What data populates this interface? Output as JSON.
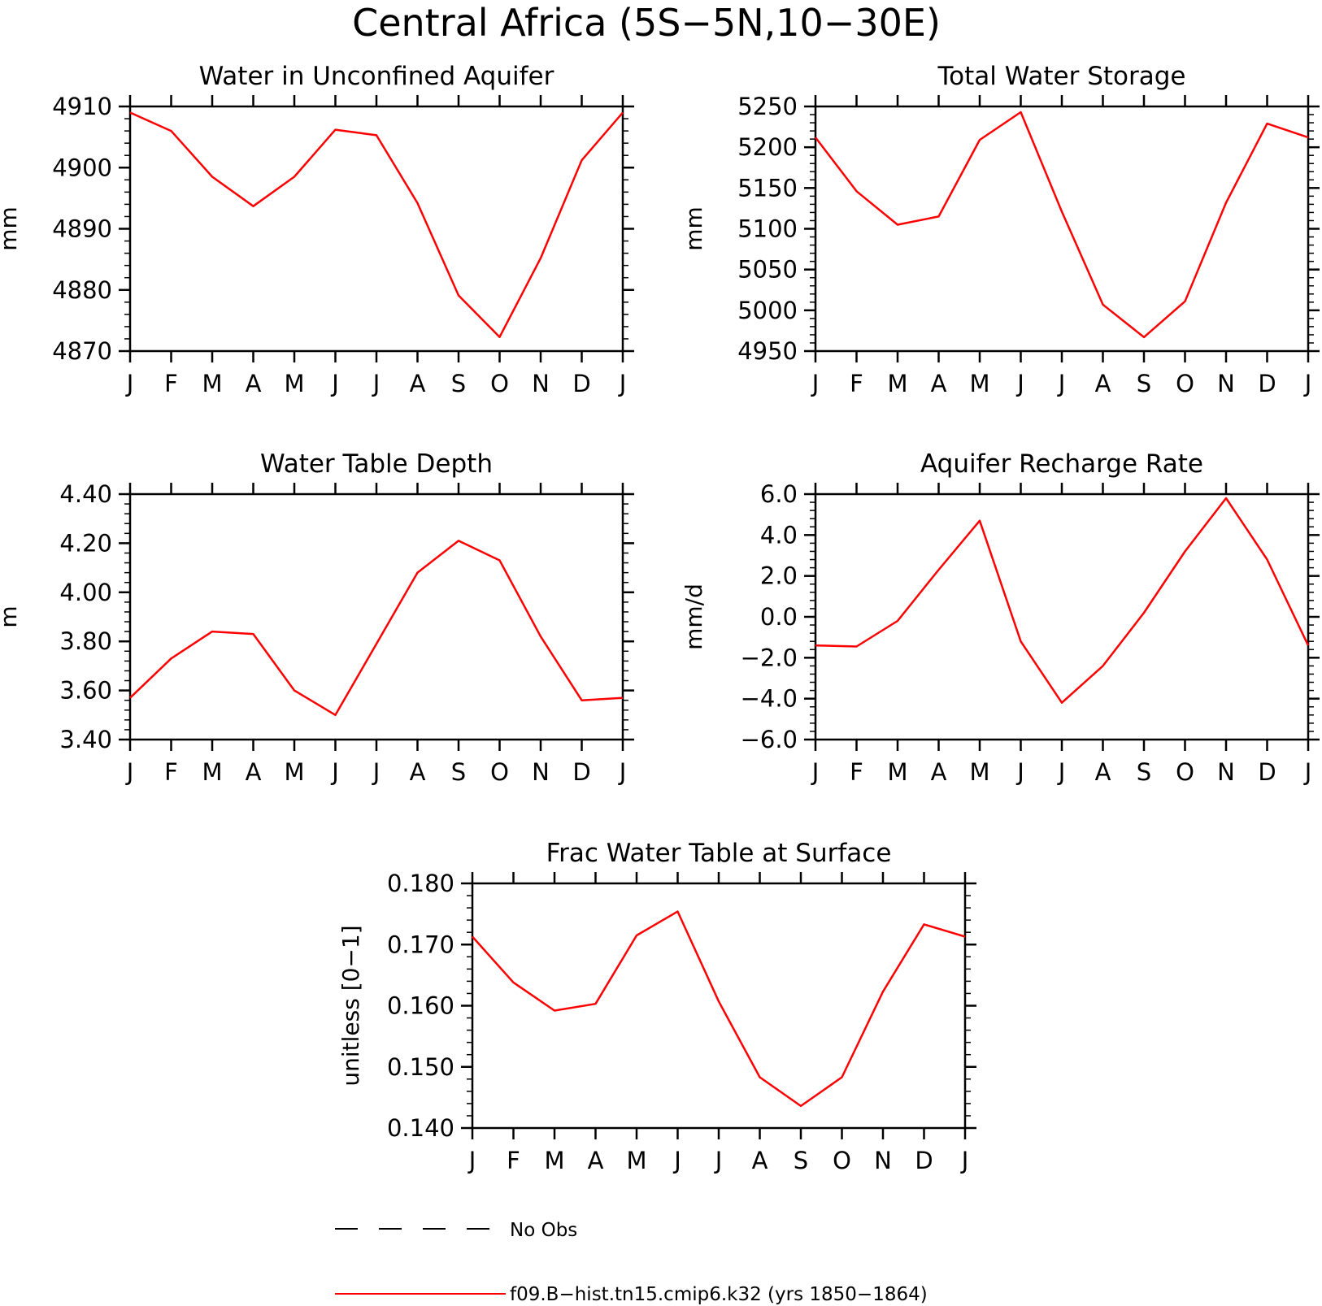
{
  "figure": {
    "title": "Central Africa (5S−5N,10−30E)"
  },
  "legend": {
    "items": [
      {
        "label": "No Obs",
        "style": "dashed",
        "color": "#000000"
      },
      {
        "label": "f09.B−hist.tn15.cmip6.k32 (yrs 1850−1864)",
        "style": "solid",
        "color": "#ff0000"
      }
    ]
  },
  "chart_data": [
    {
      "type": "line",
      "title": "Water in Unconfined Aquifer",
      "ylabel": "mm",
      "categories": [
        "J",
        "F",
        "M",
        "A",
        "M",
        "J",
        "J",
        "A",
        "S",
        "O",
        "N",
        "D",
        "J"
      ],
      "ylim": [
        4870,
        4910
      ],
      "yticks": [
        "4870",
        "4880",
        "4890",
        "4900",
        "4910"
      ],
      "series": [
        {
          "color": "#ff0000",
          "values": [
            4909,
            4906,
            4898.5,
            4893.7,
            4898.5,
            4906.2,
            4905.3,
            4894.2,
            4879.1,
            4872.3,
            4885.2,
            4901.2,
            4909
          ]
        }
      ]
    },
    {
      "type": "line",
      "title": "Total Water Storage",
      "ylabel": "mm",
      "categories": [
        "J",
        "F",
        "M",
        "A",
        "M",
        "J",
        "J",
        "A",
        "S",
        "O",
        "N",
        "D",
        "J"
      ],
      "ylim": [
        4950,
        5250
      ],
      "yticks": [
        "4950",
        "5000",
        "5050",
        "5100",
        "5150",
        "5200",
        "5250"
      ],
      "series": [
        {
          "color": "#ff0000",
          "values": [
            5212,
            5146,
            5105,
            5115,
            5209,
            5243,
            5121,
            5007,
            4967,
            5011,
            5132,
            5229,
            5212
          ]
        }
      ]
    },
    {
      "type": "line",
      "title": "Water Table Depth",
      "ylabel": "m",
      "categories": [
        "J",
        "F",
        "M",
        "A",
        "M",
        "J",
        "J",
        "A",
        "S",
        "O",
        "N",
        "D",
        "J"
      ],
      "ylim": [
        3.4,
        4.4
      ],
      "yticks": [
        "3.40",
        "3.60",
        "3.80",
        "4.00",
        "4.20",
        "4.40"
      ],
      "series": [
        {
          "color": "#ff0000",
          "values": [
            3.57,
            3.73,
            3.84,
            3.83,
            3.6,
            3.5,
            3.79,
            4.08,
            4.21,
            4.13,
            3.82,
            3.56,
            3.57
          ]
        }
      ]
    },
    {
      "type": "line",
      "title": "Aquifer Recharge Rate",
      "ylabel": "mm/d",
      "categories": [
        "J",
        "F",
        "M",
        "A",
        "M",
        "J",
        "J",
        "A",
        "S",
        "O",
        "N",
        "D",
        "J"
      ],
      "ylim": [
        -6,
        6
      ],
      "yticks": [
        "−6.0",
        "−4.0",
        "−2.0",
        "0.0",
        "2.0",
        "4.0",
        "6.0"
      ],
      "series": [
        {
          "color": "#ff0000",
          "values": [
            -1.4,
            -1.45,
            -0.2,
            2.3,
            4.7,
            -1.2,
            -4.2,
            -2.4,
            0.2,
            3.2,
            5.8,
            2.8,
            -1.4
          ]
        }
      ]
    },
    {
      "type": "line",
      "title": "Frac Water Table at Surface",
      "ylabel": "unitless [0−1]",
      "categories": [
        "J",
        "F",
        "M",
        "A",
        "M",
        "J",
        "J",
        "A",
        "S",
        "O",
        "N",
        "D",
        "J"
      ],
      "ylim": [
        0.14,
        0.18
      ],
      "yticks": [
        "0.140",
        "0.150",
        "0.160",
        "0.170",
        "0.180"
      ],
      "series": [
        {
          "color": "#ff0000",
          "values": [
            0.1713,
            0.1638,
            0.1592,
            0.1603,
            0.1715,
            0.1754,
            0.1607,
            0.1483,
            0.1436,
            0.1483,
            0.1623,
            0.1733,
            0.1713
          ]
        }
      ]
    }
  ]
}
